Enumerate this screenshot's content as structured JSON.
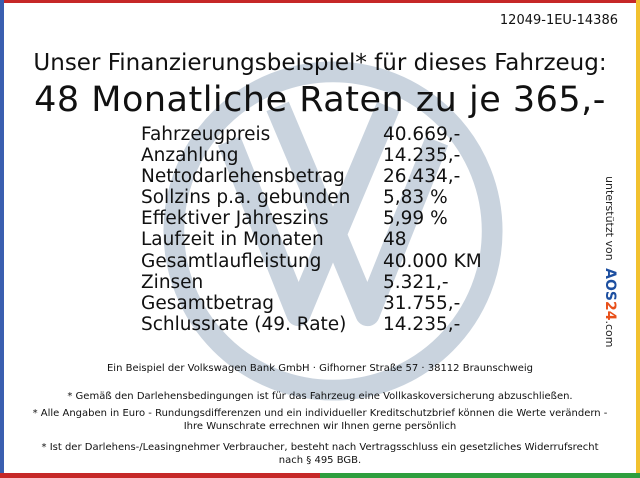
{
  "reference": "12049-1EU-14386",
  "headline": "Unser Finanzierungsbeispiel* für dieses Fahrzeug:",
  "title": "48 Monatliche Raten zu je 365,-",
  "rows": [
    {
      "label": "Fahrzeugpreis",
      "value": "40.669,-"
    },
    {
      "label": "Anzahlung",
      "value": "14.235,-"
    },
    {
      "label": "Nettodarlehensbetrag",
      "value": "26.434,-"
    },
    {
      "label": "Sollzins p.a. gebunden",
      "value": "5,83 %"
    },
    {
      "label": "Effektiver Jahreszins",
      "value": "5,99 %"
    },
    {
      "label": "Laufzeit in Monaten",
      "value": "48"
    },
    {
      "label": "Gesamtlaufleistung",
      "value": "40.000 KM"
    },
    {
      "label": "Zinsen",
      "value": "5.321,-"
    },
    {
      "label": "Gesamtbetrag",
      "value": "31.755,-"
    },
    {
      "label": "Schlussrate (49. Rate)",
      "value": "14.235,-"
    }
  ],
  "sidebar": {
    "prefix": "unterstützt von",
    "brand_a": "AOS",
    "brand_b": "24",
    "suffix": ".com",
    "colors": {
      "text": "#222222",
      "brand_a": "#1d4fa0",
      "brand_b": "#e8501a"
    }
  },
  "lender": "Ein Beispiel der Volkswagen Bank GmbH · Gifhorner Straße 57 · 38112 Braunschweig",
  "notes": [
    "* Gemäß den Darlehensbedingungen ist für das Fahrzeug eine Vollkaskoversicherung abzuschließen.",
    "* Alle Angaben in Euro - Rundungsdifferenzen und ein individueller Kreditschutzbrief können die Werte verändern - Ihre Wunschrate errechnen wir Ihnen gerne persönlich",
    "* Ist der Darlehens-/Leasingnehmer Verbraucher, besteht nach Vertragsschluss ein gesetzliches Widerrufsrecht nach § 495 BGB."
  ],
  "watermark_icon": "vw-logo-icon",
  "colors": {
    "border_left": "#3a5fb0",
    "border_right": "#f2c12e",
    "border_bottom_left": "#c62828",
    "border_bottom_right": "#2e9e3e",
    "watermark": "#c8d2dc"
  }
}
